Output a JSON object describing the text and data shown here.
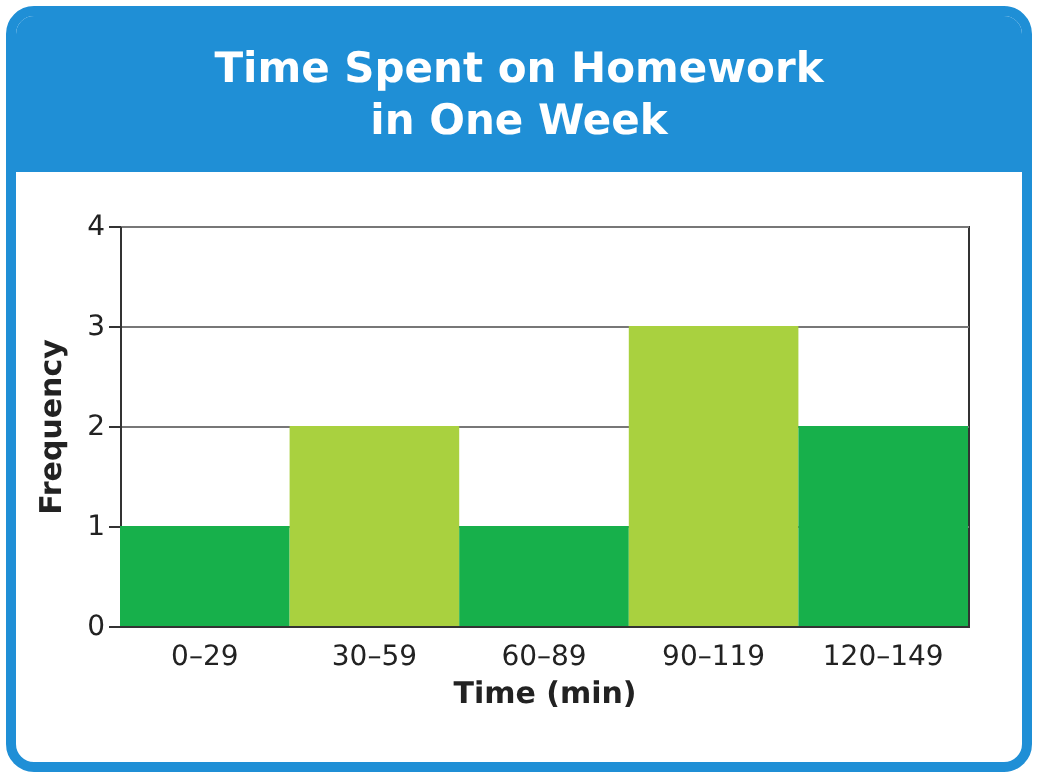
{
  "chart_data": {
    "type": "bar",
    "title": "Time Spent on Homework in One Week",
    "xlabel": "Time (min)",
    "ylabel": "Frequency",
    "categories": [
      "0–29",
      "30–59",
      "60–89",
      "90–119",
      "120–149"
    ],
    "values": [
      1,
      2,
      1,
      3,
      2
    ],
    "colors": [
      "#17b04b",
      "#a9d13f",
      "#17b04b",
      "#a9d13f",
      "#17b04b"
    ],
    "ylim": [
      0,
      4
    ],
    "yticks": [
      0,
      1,
      2,
      3,
      4
    ],
    "grid": "y"
  }
}
